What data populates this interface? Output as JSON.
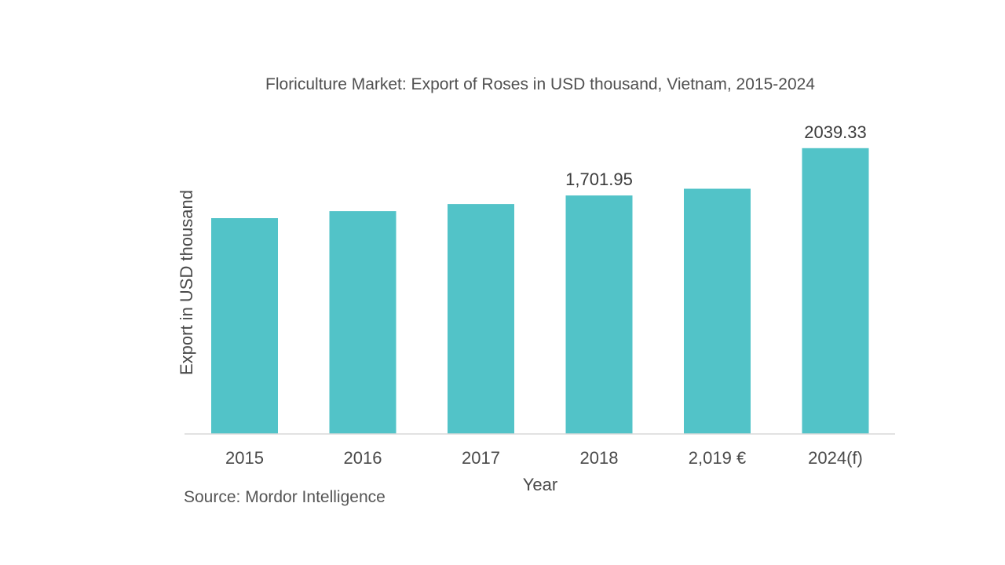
{
  "chart_data": {
    "type": "bar",
    "title": "Floriculture Market: Export of Roses in USD thousand, Vietnam, 2015-2024",
    "xlabel": "Year",
    "ylabel": "Export in USD thousand",
    "categories": [
      "2015",
      "2016",
      "2017",
      "2018",
      "2,019 €",
      "2024(f)"
    ],
    "values": [
      1540,
      1590,
      1640,
      1701.95,
      1750,
      2039.33
    ],
    "data_labels": [
      "",
      "",
      "",
      "1,701.95",
      "",
      "2039.33"
    ],
    "ylim": [
      0,
      2100
    ],
    "grid": false,
    "bar_color": "#52c3c8",
    "axis_color": "#d9d9d9",
    "source": "Source: Mordor Intelligence"
  }
}
